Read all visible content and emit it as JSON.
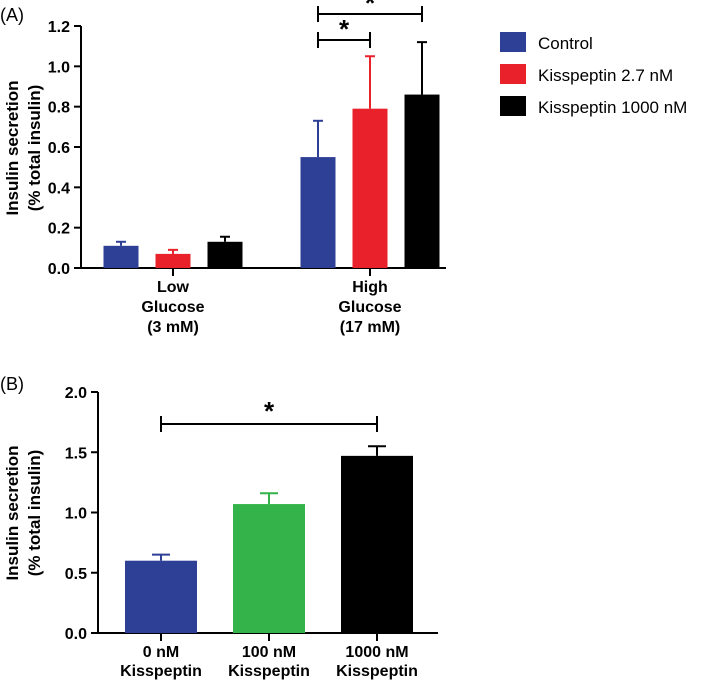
{
  "chart_data": [
    {
      "panel": "(A)",
      "type": "bar",
      "ylabel": [
        "Insulin secretion",
        "(% total insulin)"
      ],
      "ylim": [
        0,
        1.2
      ],
      "yticks": [
        "0.0",
        "0.2",
        "0.4",
        "0.6",
        "0.8",
        "1.0",
        "1.2"
      ],
      "groups": [
        {
          "label": [
            "Low",
            "Glucose",
            "(3 mM)"
          ]
        },
        {
          "label": [
            "High",
            "Glucose",
            "(17 mM)"
          ]
        }
      ],
      "series": [
        {
          "name": "Control",
          "color": "#2e3f96",
          "values": [
            0.11,
            0.55
          ],
          "errors": [
            0.02,
            0.18
          ]
        },
        {
          "name": "Kisspeptin 2.7 nM",
          "color": "#e8212a",
          "values": [
            0.07,
            0.79
          ],
          "errors": [
            0.02,
            0.26
          ]
        },
        {
          "name": "Kisspeptin 1000 nM",
          "color": "#000000",
          "values": [
            0.13,
            0.86
          ],
          "errors": [
            0.025,
            0.26
          ]
        }
      ],
      "significance": [
        {
          "from": "High Glucose Control",
          "to": "High Glucose Kisspeptin 2.7 nM",
          "symbol": "*"
        },
        {
          "from": "High Glucose Control",
          "to": "High Glucose Kisspeptin 1000 nM",
          "symbol": "*"
        }
      ]
    },
    {
      "panel": "(B)",
      "type": "bar",
      "ylabel": [
        "Insulin secretion",
        "(% total insulin)"
      ],
      "ylim": [
        0,
        2.0
      ],
      "yticks": [
        "0.0",
        "0.5",
        "1.0",
        "1.5",
        "2.0"
      ],
      "bars": [
        {
          "label": [
            "0 nM",
            "Kisspeptin"
          ],
          "value": 0.6,
          "error": 0.05,
          "color": "#2e3f96"
        },
        {
          "label": [
            "100 nM",
            "Kisspeptin"
          ],
          "value": 1.07,
          "error": 0.09,
          "color": "#34b34a"
        },
        {
          "label": [
            "1000 nM",
            "Kisspeptin"
          ],
          "value": 1.47,
          "error": 0.08,
          "color": "#000000"
        }
      ],
      "significance": [
        {
          "from": "0 nM Kisspeptin",
          "to": "1000 nM Kisspeptin",
          "symbol": "*"
        }
      ]
    }
  ]
}
